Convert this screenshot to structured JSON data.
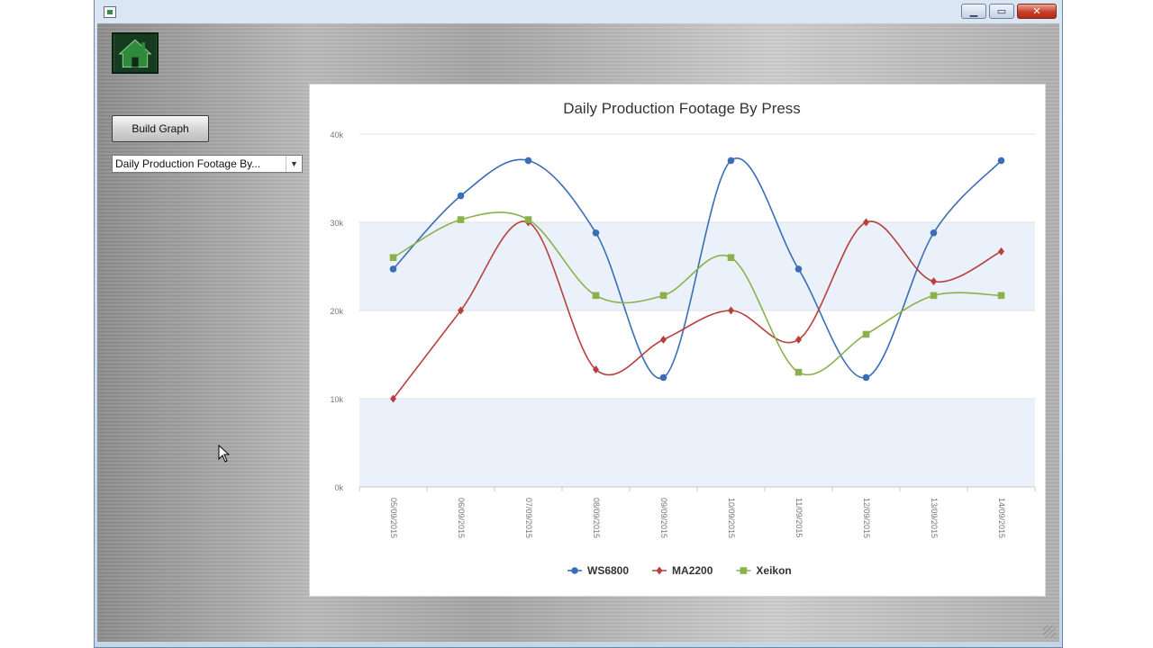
{
  "window": {
    "buttons": {
      "minimize": "▁",
      "maximize": "▭",
      "close": "✕"
    }
  },
  "toolbar": {
    "home_icon": "home-icon",
    "build_label": "Build Graph",
    "graph_select_value": "Daily Production Footage By..."
  },
  "colors": {
    "ws6800": "#3b6db5",
    "ma2200": "#b7403f",
    "xeikon": "#8ab14c",
    "band": "#eaf1fa"
  },
  "chart_data": {
    "type": "line",
    "title": "Daily Production Footage By Press",
    "xlabel": "",
    "ylabel": "",
    "categories": [
      "05/09/2015",
      "06/09/2015",
      "07/09/2015",
      "08/09/2015",
      "09/09/2015",
      "10/09/2015",
      "11/09/2015",
      "12/09/2015",
      "13/09/2015",
      "14/09/2015"
    ],
    "ylim": [
      0,
      40000
    ],
    "yticks": [
      0,
      10000,
      20000,
      30000,
      40000
    ],
    "ytick_labels": [
      "0k",
      "10k",
      "20k",
      "30k",
      "40k"
    ],
    "smooth": true,
    "legend": "bottom",
    "series": [
      {
        "name": "WS6800",
        "marker": "circle",
        "values": [
          24700,
          33000,
          37000,
          28800,
          12400,
          37000,
          24700,
          12400,
          28800,
          37000
        ]
      },
      {
        "name": "MA2200",
        "marker": "diamond",
        "values": [
          10000,
          20000,
          30000,
          13300,
          16700,
          20000,
          16700,
          30000,
          23300,
          26700
        ]
      },
      {
        "name": "Xeikon",
        "marker": "square",
        "values": [
          26000,
          30300,
          30300,
          21700,
          21700,
          26000,
          13000,
          17300,
          21700,
          21700
        ]
      }
    ]
  }
}
